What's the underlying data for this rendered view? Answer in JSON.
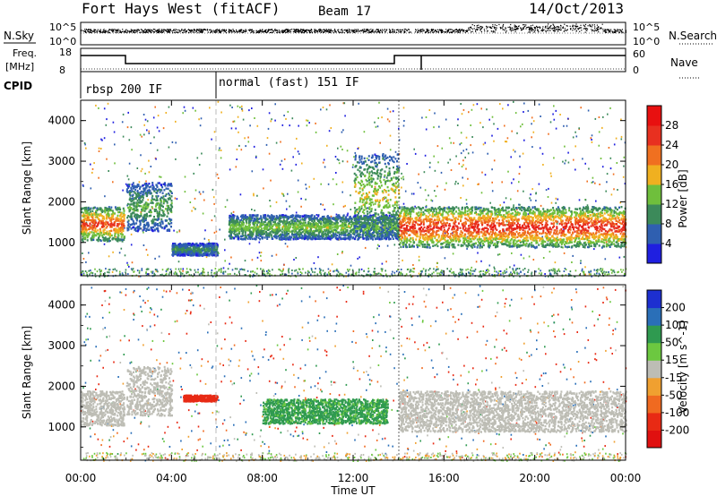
{
  "header": {
    "station": "Fort Hays West (fitACF)",
    "beam": "Beam 17",
    "date": "14/Oct/2013"
  },
  "top_panels": {
    "nsky_label": "N.Sky",
    "nsky_ticks": [
      "10^5",
      "10^0"
    ],
    "nsearch_label": "N.Search",
    "nsearch_ticks": [
      "10^5",
      "10^0"
    ],
    "freq_label_1": "Freq.",
    "freq_label_2": "[MHz]",
    "freq_ticks": [
      "18",
      "8"
    ],
    "nave_label": "Nave",
    "nave_ticks": [
      "60",
      "0"
    ],
    "cpid_label": "CPID",
    "cpid_1": "rbsp 200 IF",
    "cpid_2": "normal (fast) 151 IF"
  },
  "chart_data": [
    {
      "type": "heatmap",
      "name": "power",
      "ylabel": "Slant Range [km]",
      "xlabel": "",
      "yticks": [
        "1000",
        "2000",
        "3000",
        "4000"
      ],
      "ylim": [
        180,
        4500
      ],
      "xlim": [
        0,
        24
      ],
      "colorbar": {
        "label": "Power [dB]",
        "ticks": [
          "4",
          "8",
          "12",
          "16",
          "20",
          "24",
          "28"
        ],
        "colors": [
          "#1f1fe0",
          "#2f5fb0",
          "#3c8a5a",
          "#6fbf3c",
          "#f0b020",
          "#f07020",
          "#e83020",
          "#e81010"
        ],
        "range": [
          0,
          30
        ]
      },
      "features": [
        {
          "t_start": 0.0,
          "t_end": 1.9,
          "range_low": 1050,
          "range_high": 1900,
          "level": 24
        },
        {
          "t_start": 2.0,
          "t_end": 4.0,
          "range_low": 1300,
          "range_high": 2500,
          "level": 12
        },
        {
          "t_start": 4.0,
          "t_end": 6.0,
          "range_low": 700,
          "range_high": 1000,
          "level": 10
        },
        {
          "t_start": 6.5,
          "t_end": 14.0,
          "range_low": 1100,
          "range_high": 1700,
          "level": 14
        },
        {
          "t_start": 12.0,
          "t_end": 14.0,
          "range_low": 1200,
          "range_high": 3200,
          "level": 16
        },
        {
          "t_start": 14.0,
          "t_end": 24.0,
          "range_low": 900,
          "range_high": 1900,
          "level": 26
        }
      ]
    },
    {
      "type": "heatmap",
      "name": "velocity",
      "ylabel": "Slant Range [km]",
      "xlabel": "Time UT",
      "yticks": [
        "1000",
        "2000",
        "3000",
        "4000"
      ],
      "xticks": [
        "00:00",
        "04:00",
        "08:00",
        "12:00",
        "16:00",
        "20:00",
        "00:00"
      ],
      "ylim": [
        180,
        4500
      ],
      "xlim": [
        0,
        24
      ],
      "colorbar": {
        "label": "Velocity [m s^-1]",
        "ticks": [
          "200",
          "100",
          "50",
          "15",
          "-15",
          "-50",
          "-100",
          "-200"
        ],
        "colors": [
          "#1d2fd0",
          "#2a6fb8",
          "#2f9a50",
          "#6cc840",
          "#bdbdb5",
          "#f0a030",
          "#f06a20",
          "#e82a14",
          "#e01010"
        ],
        "range": [
          -250,
          250
        ]
      },
      "features": [
        {
          "t_start": 0.0,
          "t_end": 1.9,
          "range_low": 1050,
          "range_high": 1900,
          "velocity": 0
        },
        {
          "t_start": 2.0,
          "t_end": 4.0,
          "range_low": 1300,
          "range_high": 2500,
          "velocity": 0
        },
        {
          "t_start": 4.5,
          "t_end": 6.0,
          "range_low": 1650,
          "range_high": 1800,
          "velocity": -150
        },
        {
          "t_start": 8.0,
          "t_end": 13.5,
          "range_low": 1100,
          "range_high": 1700,
          "velocity": 60
        },
        {
          "t_start": 14.0,
          "t_end": 24.0,
          "range_low": 900,
          "range_high": 1900,
          "velocity": 0
        }
      ]
    }
  ]
}
